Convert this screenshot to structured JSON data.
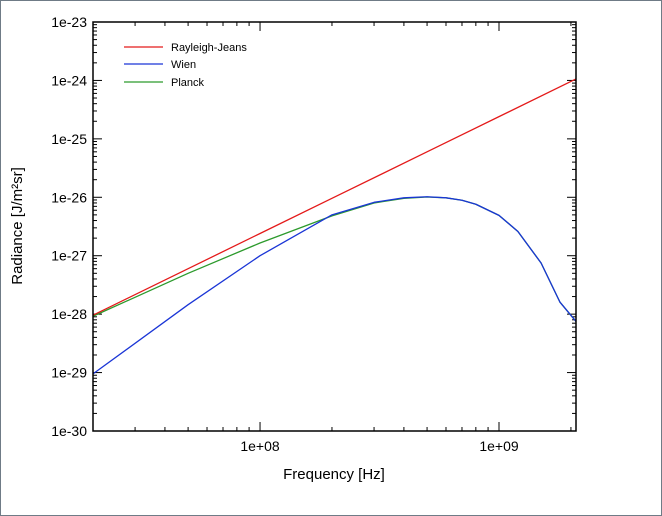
{
  "chart_data": {
    "type": "line",
    "title": "",
    "xlabel": "Frequency [Hz]",
    "ylabel": "Radiance [J/m²sr]",
    "xscale": "log",
    "yscale": "log",
    "xlim": [
      20000000,
      2100000000
    ],
    "ylim": [
      1e-30,
      1e-23
    ],
    "x_ticks": [
      {
        "value": 100000000,
        "label": "1e+08"
      },
      {
        "value": 1000000000,
        "label": "1e+09"
      }
    ],
    "y_ticks": [
      {
        "value": 1e-23,
        "label": "1e-23"
      },
      {
        "value": 1e-24,
        "label": "1e-24"
      },
      {
        "value": 1e-25,
        "label": "1e-25"
      },
      {
        "value": 1e-26,
        "label": "1e-26"
      },
      {
        "value": 1e-27,
        "label": "1e-27"
      },
      {
        "value": 1e-28,
        "label": "1e-28"
      },
      {
        "value": 1e-29,
        "label": "1e-29"
      },
      {
        "value": 1e-30,
        "label": "1e-30"
      }
    ],
    "legend_position": "top-left",
    "series": [
      {
        "name": "Rayleigh-Jeans",
        "color": "#e41a1a",
        "x": [
          20000000,
          50000000,
          100000000,
          200000000,
          500000000,
          1000000000,
          2100000000
        ],
        "y": [
          9.6e-29,
          6e-28,
          2.4e-27,
          9.6e-27,
          6e-26,
          2.4e-25,
          1.06e-24
        ]
      },
      {
        "name": "Wien",
        "color": "#1a35d6",
        "x": [
          20000000,
          50000000,
          100000000,
          200000000,
          300000000,
          400000000,
          500000000,
          600000000,
          700000000,
          800000000,
          1000000000,
          1200000000,
          1500000000,
          1800000000,
          2100000000
        ],
        "y": [
          9.5e-30,
          1.45e-28,
          1e-27,
          5e-27,
          8.2e-27,
          9.8e-27,
          1.02e-26,
          9.8e-27,
          8.9e-27,
          7.6e-27,
          4.9e-27,
          2.6e-27,
          7.5e-28,
          1.6e-28,
          7.5e-29
        ]
      },
      {
        "name": "Planck",
        "color": "#2c9a2c",
        "x": [
          20000000,
          50000000,
          100000000,
          200000000,
          300000000,
          400000000,
          500000000,
          600000000,
          700000000,
          800000000,
          1000000000,
          1200000000,
          1500000000,
          1800000000,
          2100000000
        ],
        "y": [
          9.2e-29,
          5e-28,
          1.65e-27,
          4.8e-27,
          8e-27,
          9.6e-27,
          1.01e-26,
          9.8e-27,
          8.9e-27,
          7.6e-27,
          4.9e-27,
          2.6e-27,
          7.5e-28,
          1.6e-28,
          7.5e-29
        ]
      }
    ]
  }
}
